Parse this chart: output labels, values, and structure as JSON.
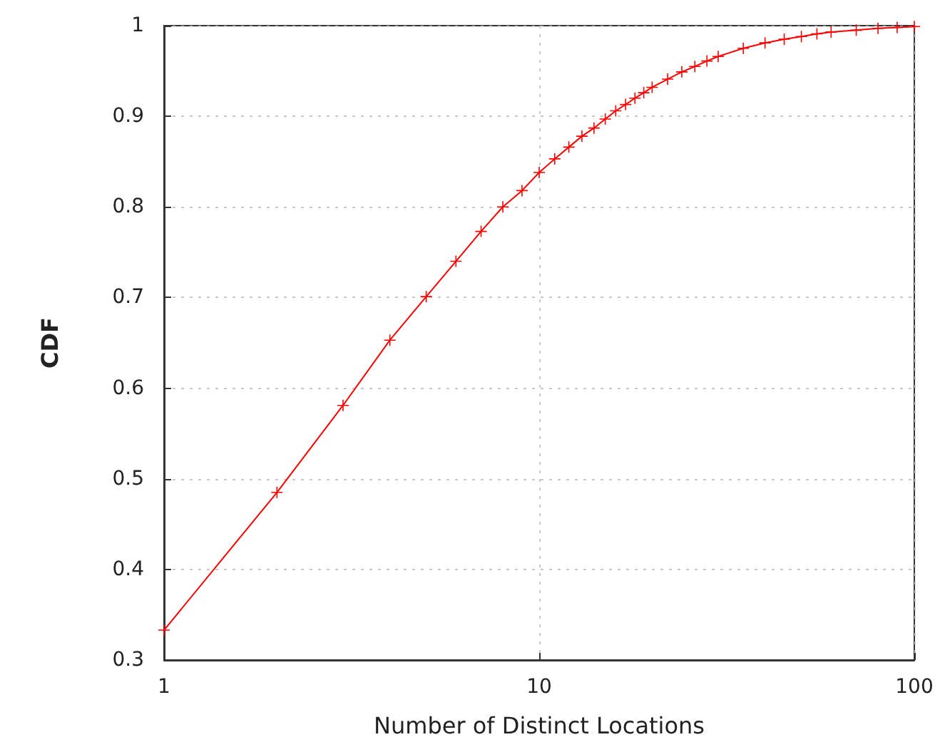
{
  "chart_data": {
    "type": "line",
    "xlabel": "Number of Distinct Locations",
    "ylabel": "CDF",
    "log": "x",
    "grid": true,
    "marker": "cross",
    "line_style": "solid",
    "xlim": [
      1,
      100
    ],
    "xticks": [
      1,
      10,
      100
    ],
    "ylim": [
      0.3,
      1
    ],
    "yticks": [
      0.3,
      0.4,
      0.5,
      0.6,
      0.7,
      0.8,
      0.9,
      1
    ],
    "series": [
      {
        "color": "#ff0000",
        "x": [
          1,
          2,
          3,
          4,
          5,
          6,
          7,
          8,
          9,
          10,
          11,
          12,
          13,
          14,
          15,
          16,
          17,
          18,
          19,
          20,
          22,
          24,
          26,
          28,
          30,
          35,
          40,
          45,
          50,
          55,
          60,
          70,
          80,
          90,
          100
        ],
        "values": [
          0.333,
          0.485,
          0.581,
          0.653,
          0.701,
          0.74,
          0.773,
          0.8,
          0.818,
          0.838,
          0.853,
          0.866,
          0.878,
          0.887,
          0.897,
          0.906,
          0.913,
          0.92,
          0.926,
          0.932,
          0.941,
          0.949,
          0.955,
          0.961,
          0.966,
          0.975,
          0.981,
          0.985,
          0.988,
          0.991,
          0.993,
          0.995,
          0.997,
          0.998,
          0.999
        ]
      }
    ]
  }
}
